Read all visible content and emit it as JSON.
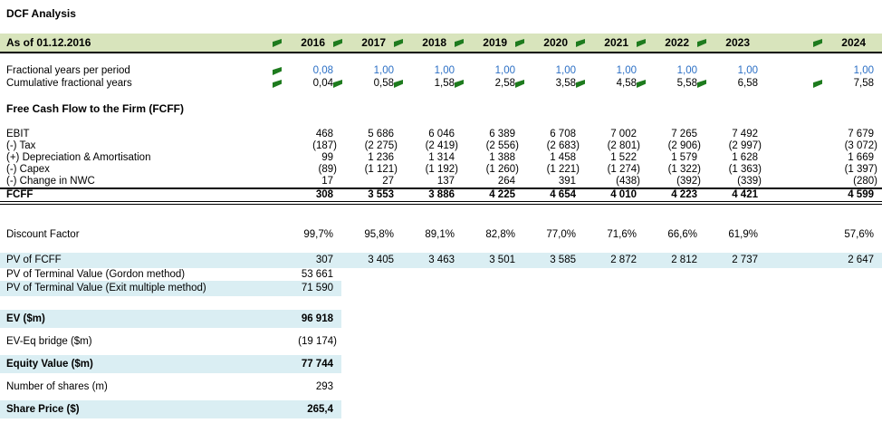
{
  "title": "DCF Analysis",
  "colors": {
    "header_bg": "#d8e4bc",
    "band_bg": "#daeef3",
    "flag": "#1e7b1e",
    "input_blue": "#2b6fc5"
  },
  "header": {
    "label": "As of 01.12.2016",
    "years": [
      "2016",
      "2017",
      "2018",
      "2019",
      "2020",
      "2021",
      "2022",
      "2023",
      "2024"
    ]
  },
  "fractional": {
    "per_period": {
      "label": "Fractional years per period",
      "values": [
        "0,08",
        "1,00",
        "1,00",
        "1,00",
        "1,00",
        "1,00",
        "1,00",
        "1,00",
        "1,00"
      ]
    },
    "cumulative": {
      "label": "Cumulative fractional years",
      "values": [
        "0,04",
        "0,58",
        "1,58",
        "2,58",
        "3,58",
        "4,58",
        "5,58",
        "6,58",
        "7,58"
      ]
    }
  },
  "fcff_section": {
    "heading": "Free Cash Flow to the Firm (FCFF)",
    "ebit": {
      "label": "EBIT",
      "values": [
        "468",
        "5 686",
        "6 046",
        "6 389",
        "6 708",
        "7 002",
        "7 265",
        "7 492",
        "7 679"
      ]
    },
    "tax": {
      "label": "(-) Tax",
      "values": [
        "(187)",
        "(2 275)",
        "(2 419)",
        "(2 556)",
        "(2 683)",
        "(2 801)",
        "(2 906)",
        "(2 997)",
        "(3 072)"
      ]
    },
    "depreciation": {
      "label": "(+) Depreciation & Amortisation",
      "values": [
        "99",
        "1 236",
        "1 314",
        "1 388",
        "1 458",
        "1 522",
        "1 579",
        "1 628",
        "1 669"
      ]
    },
    "capex": {
      "label": "(-) Capex",
      "values": [
        "(89)",
        "(1 121)",
        "(1 192)",
        "(1 260)",
        "(1 221)",
        "(1 274)",
        "(1 322)",
        "(1 363)",
        "(1 397)"
      ]
    },
    "nwc": {
      "label": "(-) Change in NWC",
      "values": [
        "17",
        "27",
        "137",
        "264",
        "391",
        "(438)",
        "(392)",
        "(339)",
        "(280)"
      ]
    },
    "fcff": {
      "label": "FCFF",
      "values": [
        "308",
        "3 553",
        "3 886",
        "4 225",
        "4 654",
        "4 010",
        "4 223",
        "4 421",
        "4 599"
      ]
    }
  },
  "discount_factor": {
    "label": "Discount Factor",
    "values": [
      "99,7%",
      "95,8%",
      "89,1%",
      "82,8%",
      "77,0%",
      "71,6%",
      "66,6%",
      "61,9%",
      "57,6%"
    ]
  },
  "pv_section": {
    "pv_fcff": {
      "label": "PV of FCFF",
      "values": [
        "307",
        "3 405",
        "3 463",
        "3 501",
        "3 585",
        "2 872",
        "2 812",
        "2 737",
        "2 647"
      ]
    },
    "pv_tv_gordon": {
      "label": "PV of Terminal Value (Gordon method)",
      "values": [
        "53 661"
      ]
    },
    "pv_tv_exit": {
      "label": "PV of Terminal Value (Exit multiple method)",
      "values": [
        "71 590"
      ]
    }
  },
  "summary": {
    "ev": {
      "label": "EV ($m)",
      "values": [
        "96 918"
      ]
    },
    "bridge": {
      "label": "EV-Eq bridge ($m)",
      "values": [
        "(19 174)"
      ]
    },
    "equity": {
      "label": "Equity Value ($m)",
      "values": [
        "77 744"
      ]
    },
    "shares": {
      "label": "Number of shares (m)",
      "values": [
        "293"
      ]
    },
    "share_price": {
      "label": "Share Price ($)",
      "values": [
        "265,4"
      ]
    }
  }
}
